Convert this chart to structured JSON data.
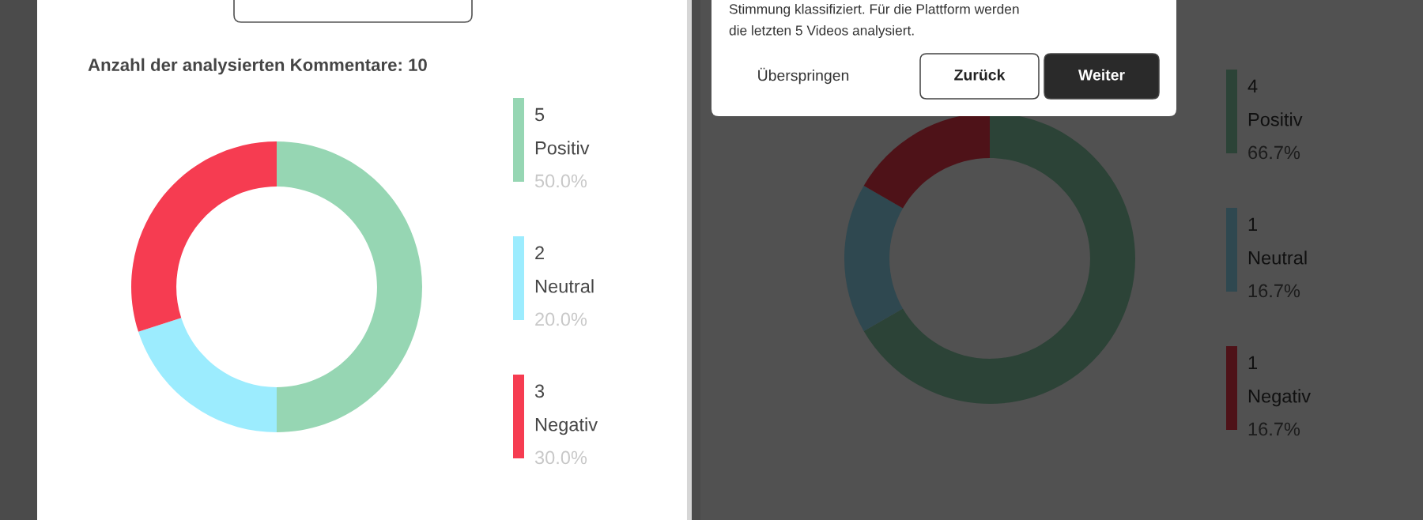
{
  "chart_data": [
    {
      "type": "donut",
      "title": "Anzahl der analysierten Kommentare: 10",
      "categories": [
        "Positiv",
        "Neutral",
        "Negativ"
      ],
      "values": [
        5,
        2,
        3
      ],
      "colors": [
        "#96d6b3",
        "#9cecfe",
        "#f63c51"
      ],
      "data_labels": true,
      "annotations": [
        "50.0%",
        "20.0%",
        "30.0%"
      ],
      "legend": "right"
    },
    {
      "type": "other",
      "annotations": [
        "Stimmung klassifiziert. Für die Plattform werden",
        "die letzten 5 Videos analysiert.",
        "Überspringen",
        "Zurück",
        "Weiter"
      ]
    },
    {
      "type": "donut",
      "categories": [
        "Positiv",
        "Neutral",
        "Negativ"
      ],
      "values": [
        4,
        1,
        1
      ],
      "colors": [
        "#2c4337",
        "#2f4850",
        "#4e1218"
      ],
      "data_labels": true,
      "annotations": [
        "66.7%",
        "16.7%",
        "16.7%"
      ],
      "legend": "right"
    }
  ]
}
